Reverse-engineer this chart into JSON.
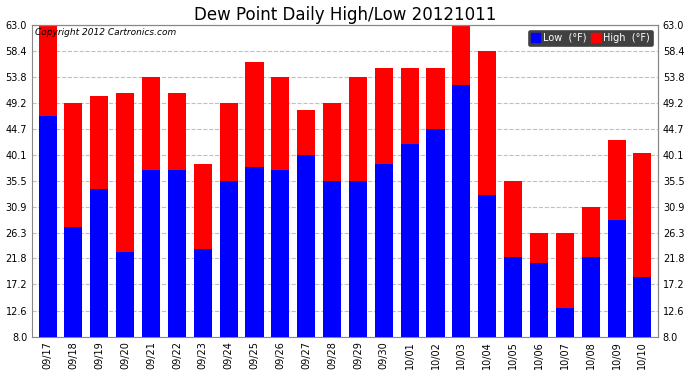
{
  "title": "Dew Point Daily High/Low 20121011",
  "copyright": "Copyright 2012 Cartronics.com",
  "categories": [
    "09/17",
    "09/18",
    "09/19",
    "09/20",
    "09/21",
    "09/22",
    "09/23",
    "09/24",
    "09/25",
    "09/26",
    "09/27",
    "09/28",
    "09/29",
    "09/30",
    "10/01",
    "10/02",
    "10/03",
    "10/04",
    "10/05",
    "10/06",
    "10/07",
    "10/08",
    "10/09",
    "10/10"
  ],
  "high_values": [
    63.0,
    49.2,
    50.5,
    51.0,
    53.8,
    51.0,
    38.5,
    49.2,
    56.5,
    53.8,
    48.0,
    49.2,
    53.8,
    55.5,
    55.5,
    55.5,
    63.0,
    58.4,
    35.5,
    26.3,
    26.3,
    30.9,
    42.8,
    40.5
  ],
  "low_values": [
    47.0,
    27.4,
    34.0,
    23.0,
    37.5,
    37.5,
    23.5,
    35.5,
    38.0,
    37.5,
    40.0,
    35.5,
    35.5,
    38.5,
    42.0,
    44.7,
    52.5,
    33.0,
    22.0,
    21.0,
    13.0,
    22.0,
    28.5,
    18.5
  ],
  "high_color": "#ff0000",
  "low_color": "#0000ff",
  "bg_color": "#ffffff",
  "plot_bg_color": "#ffffff",
  "grid_color": "#c0c0c0",
  "ytick_labels": [
    "8.0",
    "12.6",
    "17.2",
    "21.8",
    "26.3",
    "30.9",
    "35.5",
    "40.1",
    "44.7",
    "49.2",
    "53.8",
    "58.4",
    "63.0"
  ],
  "ytick_values": [
    8.0,
    12.6,
    17.2,
    21.8,
    26.3,
    30.9,
    35.5,
    40.1,
    44.7,
    49.2,
    53.8,
    58.4,
    63.0
  ],
  "ymin": 8.0,
  "ymax": 63.0,
  "bar_width": 0.7,
  "title_fontsize": 12,
  "legend_low_label": "Low  (°F)",
  "legend_high_label": "High  (°F)"
}
